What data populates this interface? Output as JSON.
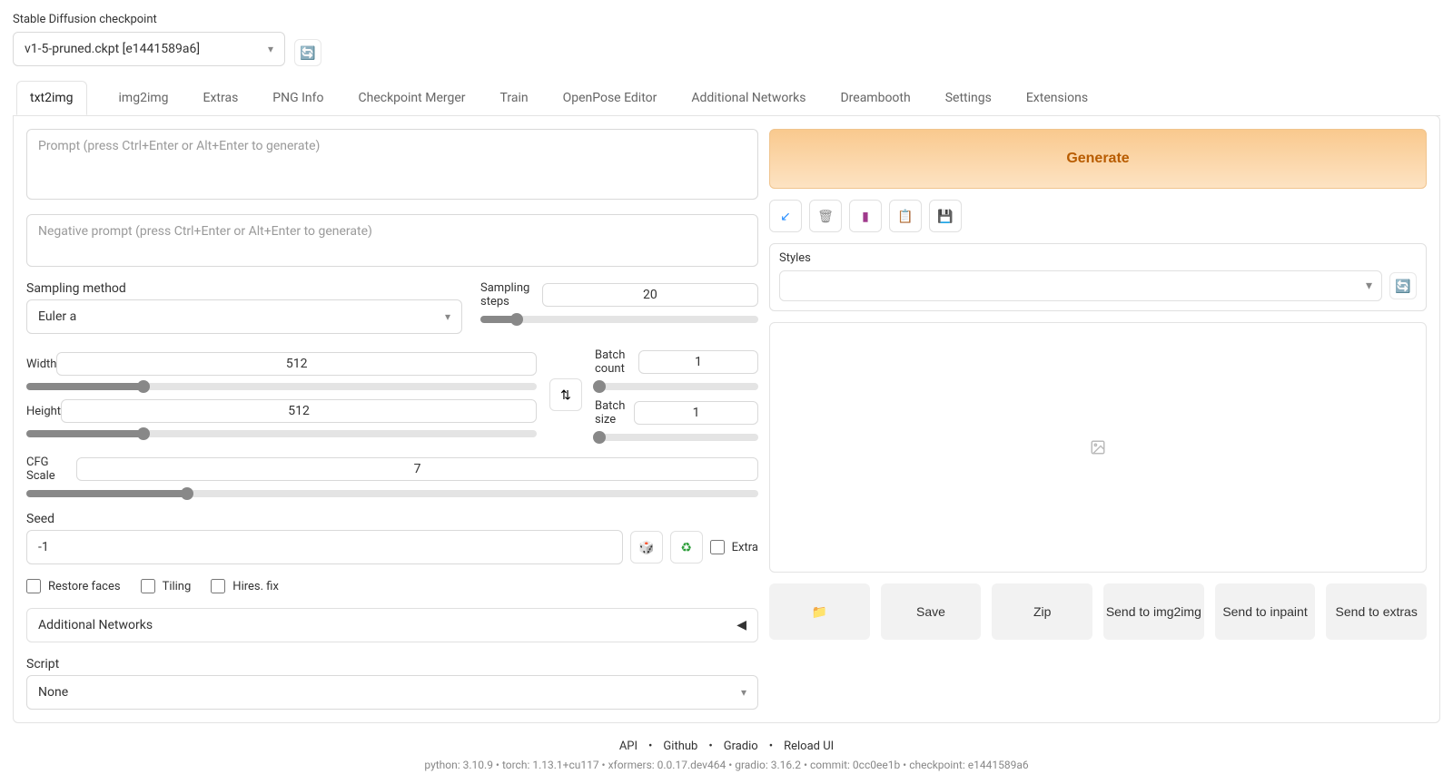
{
  "header": {
    "checkpoint_label": "Stable Diffusion checkpoint",
    "checkpoint_value": "v1-5-pruned.ckpt [e1441589a6]"
  },
  "tabs": [
    "txt2img",
    "img2img",
    "Extras",
    "PNG Info",
    "Checkpoint Merger",
    "Train",
    "OpenPose Editor",
    "Additional Networks",
    "Dreambooth",
    "Settings",
    "Extensions"
  ],
  "active_tab": 0,
  "prompts": {
    "positive_placeholder": "Prompt (press Ctrl+Enter or Alt+Enter to generate)",
    "negative_placeholder": "Negative prompt (press Ctrl+Enter or Alt+Enter to generate)"
  },
  "generate_label": "Generate",
  "styles_label": "Styles",
  "controls": {
    "sampling_method": {
      "label": "Sampling method",
      "value": "Euler a"
    },
    "sampling_steps": {
      "label": "Sampling steps",
      "value": 20,
      "pct": 13
    },
    "width": {
      "label": "Width",
      "value": 512,
      "pct": 23
    },
    "height": {
      "label": "Height",
      "value": 512,
      "pct": 23
    },
    "batch_count": {
      "label": "Batch count",
      "value": 1,
      "pct": 3
    },
    "batch_size": {
      "label": "Batch size",
      "value": 1,
      "pct": 3
    },
    "cfg": {
      "label": "CFG Scale",
      "value": 7,
      "pct": 22
    },
    "seed": {
      "label": "Seed",
      "value": "-1"
    },
    "extra_label": "Extra",
    "restore_faces_label": "Restore faces",
    "tiling_label": "Tiling",
    "hires_label": "Hires. fix",
    "additional_networks_label": "Additional Networks",
    "script_label": "Script",
    "script_value": "None"
  },
  "actions": {
    "folder": "📁",
    "save": "Save",
    "zip": "Zip",
    "send_img2img": "Send to img2img",
    "send_inpaint": "Send to inpaint",
    "send_extras": "Send to extras"
  },
  "footer": {
    "links": [
      "API",
      "Github",
      "Gradio",
      "Reload UI"
    ],
    "meta": "python: 3.10.9  •  torch: 1.13.1+cu117  •  xformers: 0.0.17.dev464  •  gradio: 3.16.2  •  commit: 0cc0ee1b  •  checkpoint: e1441589a6"
  },
  "colors": {
    "generate_bg_top": "#f9c98e",
    "generate_bg_bottom": "#fde3c3",
    "generate_text": "#b85c00",
    "accent_blue": "#2b90ff",
    "border": "#e3e3e3",
    "slider_fill": "#888888",
    "slider_empty": "#e4e4e4",
    "action_bg": "#f2f2f2"
  }
}
